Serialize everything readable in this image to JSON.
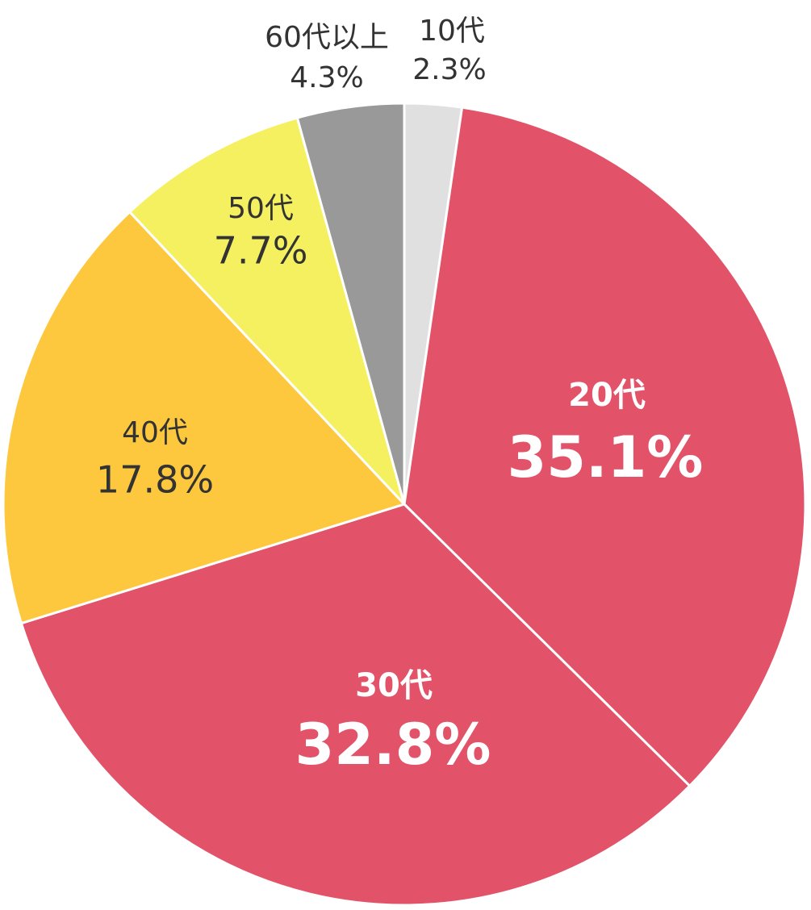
{
  "chart_data": {
    "type": "pie",
    "categories": [
      "10代",
      "20代",
      "30代",
      "40代",
      "50代",
      "60代以上"
    ],
    "values": [
      2.3,
      35.1,
      32.8,
      17.8,
      7.7,
      4.3
    ],
    "value_labels": [
      "2.3%",
      "35.1%",
      "32.8%",
      "17.8%",
      "7.7%",
      "4.3%"
    ],
    "colors": [
      "#e0e0e0",
      "#e25268",
      "#e25268",
      "#fdc83d",
      "#f5f060",
      "#999999"
    ]
  }
}
